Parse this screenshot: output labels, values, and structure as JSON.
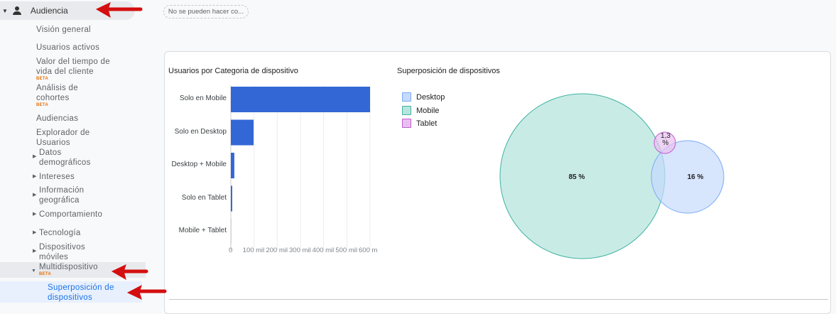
{
  "sidebar": {
    "section": "Audiencia",
    "items": [
      {
        "label": "Visión general"
      },
      {
        "label": "Usuarios activos"
      },
      {
        "label": "Valor del tiempo de vida del cliente",
        "badge": "BETA"
      },
      {
        "label": "Análisis de cohortes",
        "badge": "BETA"
      },
      {
        "label": "Audiencias"
      },
      {
        "label": "Explorador de Usuarios"
      },
      {
        "label": "Datos demográficos"
      },
      {
        "label": "Intereses"
      },
      {
        "label": "Información geográfica"
      },
      {
        "label": "Comportamiento"
      },
      {
        "label": "Tecnología"
      },
      {
        "label": "Dispositivos móviles"
      },
      {
        "label": "Multidispositivo",
        "badge": "BETA"
      },
      {
        "label": "Superposición de dispositivos"
      }
    ]
  },
  "chip": "No se pueden hacer co...",
  "chart_data": [
    {
      "type": "bar",
      "title": "Usuarios por Categoria de dispositivo",
      "orientation": "horizontal",
      "categories": [
        "Solo en Mobile",
        "Solo en Desktop",
        "Desktop + Mobile",
        "Solo en Tablet",
        "Mobile + Tablet"
      ],
      "values": [
        600000,
        98000,
        15000,
        6000,
        500
      ],
      "xlim": [
        0,
        600000
      ],
      "xticks": [
        "0",
        "100 mil",
        "200 mil",
        "300 mil",
        "400 mil",
        "500 mil",
        "600 m"
      ],
      "grid": true,
      "color": "#3367d6"
    },
    {
      "type": "venn",
      "title": "Superposición de dispositivos",
      "legend": [
        {
          "name": "Desktop",
          "color": "#c6dafc",
          "border": "#7baaf7"
        },
        {
          "name": "Mobile",
          "color": "#b7e4dd",
          "border": "#3fb3a1"
        },
        {
          "name": "Tablet",
          "color": "#e8c0ef",
          "border": "#c25bd3"
        }
      ],
      "legend_position": "top-left",
      "sets": [
        {
          "name": "Mobile",
          "label": "85 %",
          "value": 85
        },
        {
          "name": "Desktop",
          "label": "16 %",
          "value": 16
        },
        {
          "name": "Tablet",
          "label": "1,3 %",
          "value": 1.3
        }
      ]
    }
  ]
}
